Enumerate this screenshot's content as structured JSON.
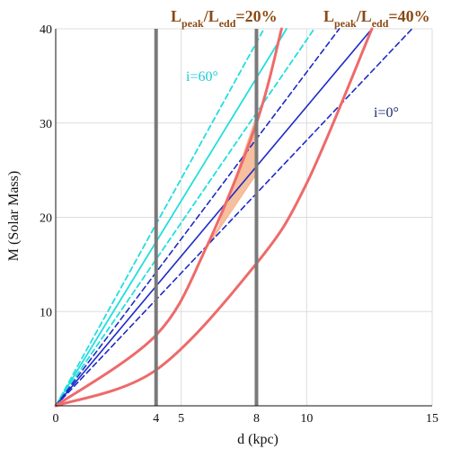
{
  "chart_data": {
    "type": "line",
    "title": "",
    "xlabel": "d (kpc)",
    "ylabel": "M (Solar Mass)",
    "xlim": [
      0,
      15
    ],
    "ylim": [
      0,
      40
    ],
    "x_ticks": [
      "0",
      "4",
      "5",
      "8",
      "10",
      "15"
    ],
    "y_ticks": [
      "10",
      "20",
      "30",
      "40"
    ],
    "grid": true,
    "colors": {
      "cyan": "#22dede",
      "blue": "#1d2bc8",
      "red": "#ee6a6a",
      "gray": "#7a7a7a",
      "fill": "#f5b48c",
      "label_brown": "#8a4a14",
      "label_cyan": "#1fc8d8",
      "label_navy": "#1a2a6a"
    },
    "vertical_lines": [
      4,
      8
    ],
    "series": [
      {
        "style": "cyan-dashed",
        "points": [
          [
            0,
            0
          ],
          [
            8.3,
            40
          ]
        ]
      },
      {
        "style": "cyan-solid",
        "points": [
          [
            0,
            0
          ],
          [
            9.2,
            40
          ]
        ]
      },
      {
        "style": "cyan-dashed",
        "points": [
          [
            0,
            0
          ],
          [
            10.3,
            40
          ]
        ]
      },
      {
        "style": "blue-dashed",
        "points": [
          [
            0,
            0
          ],
          [
            11.3,
            40
          ]
        ]
      },
      {
        "style": "blue-solid",
        "points": [
          [
            0,
            0
          ],
          [
            12.6,
            40
          ]
        ]
      },
      {
        "style": "blue-dashed",
        "points": [
          [
            0,
            0
          ],
          [
            14.2,
            40
          ]
        ]
      },
      {
        "style": "red-curve",
        "points": [
          [
            0,
            0
          ],
          [
            4,
            7.5
          ],
          [
            6,
            16.8
          ],
          [
            8,
            30
          ],
          [
            9,
            40
          ]
        ]
      },
      {
        "style": "red-curve",
        "points": [
          [
            0,
            0
          ],
          [
            4,
            3.8
          ],
          [
            8,
            15.1
          ],
          [
            10,
            23.6
          ],
          [
            12.6,
            40
          ]
        ]
      }
    ],
    "shaded_region": [
      [
        6.5,
        19
      ],
      [
        8,
        30.8
      ],
      [
        8,
        24.6
      ],
      [
        5.9,
        16.3
      ]
    ],
    "annotations": {
      "lum_20": {
        "main": "L",
        "sub1": "peak",
        "mid": "/L",
        "sub2": "edd",
        "tail": "=20%"
      },
      "lum_40": {
        "main": "L",
        "sub1": "peak",
        "mid": "/L",
        "sub2": "edd",
        "tail": "=40%"
      },
      "inc_60": "i=60°",
      "inc_0": "i=0°"
    }
  }
}
